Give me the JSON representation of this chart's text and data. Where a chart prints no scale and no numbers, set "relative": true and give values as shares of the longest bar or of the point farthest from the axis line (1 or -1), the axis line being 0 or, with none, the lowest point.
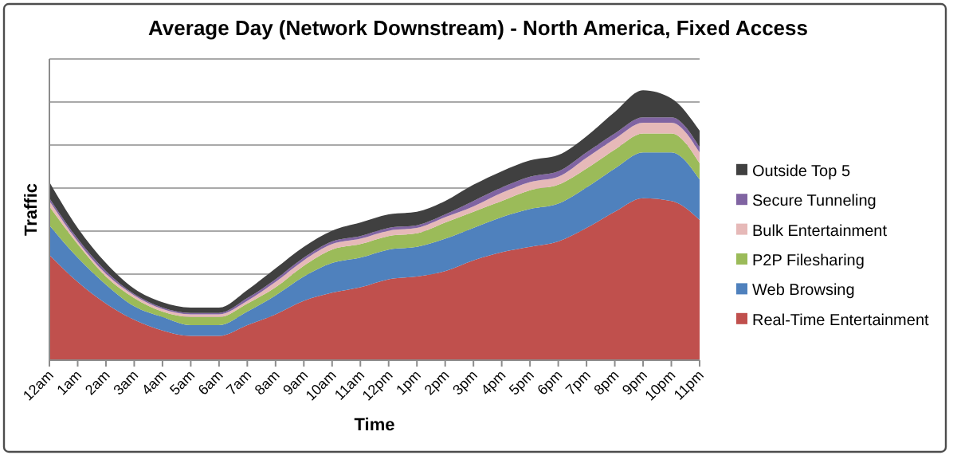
{
  "chart_data": {
    "type": "area",
    "title": "Average Day (Network Downstream) - North America, Fixed Access",
    "xlabel": "Time",
    "ylabel": "Traffic",
    "relative": true,
    "stacked": true,
    "grid": "y",
    "legend": "right",
    "categories": [
      "12am",
      "1am",
      "2am",
      "3am",
      "4am",
      "5am",
      "6am",
      "7am",
      "8am",
      "9am",
      "10am",
      "11am",
      "12pm",
      "1pm",
      "2pm",
      "3pm",
      "4pm",
      "5pm",
      "6pm",
      "7pm",
      "8pm",
      "9pm",
      "10pm",
      "11pm"
    ],
    "series": [
      {
        "name": "Real-Time Entertainment",
        "color": "#c0504d",
        "values": [
          0.39,
          0.29,
          0.21,
          0.15,
          0.11,
          0.09,
          0.09,
          0.13,
          0.17,
          0.22,
          0.25,
          0.27,
          0.3,
          0.31,
          0.33,
          0.37,
          0.4,
          0.42,
          0.44,
          0.49,
          0.55,
          0.6,
          0.59,
          0.52
        ]
      },
      {
        "name": "Web Browsing",
        "color": "#4f81bd",
        "values": [
          0.11,
          0.09,
          0.07,
          0.05,
          0.05,
          0.04,
          0.04,
          0.05,
          0.07,
          0.09,
          0.11,
          0.11,
          0.11,
          0.11,
          0.12,
          0.12,
          0.13,
          0.14,
          0.14,
          0.15,
          0.16,
          0.17,
          0.18,
          0.15
        ]
      },
      {
        "name": "P2P Filesharing",
        "color": "#9bbb59",
        "values": [
          0.07,
          0.05,
          0.03,
          0.03,
          0.02,
          0.03,
          0.03,
          0.03,
          0.03,
          0.04,
          0.05,
          0.05,
          0.05,
          0.05,
          0.06,
          0.06,
          0.06,
          0.07,
          0.07,
          0.07,
          0.07,
          0.07,
          0.07,
          0.06
        ]
      },
      {
        "name": "Bulk Entertainment",
        "color": "#e6b9b8",
        "values": [
          0.02,
          0.01,
          0.01,
          0.01,
          0.01,
          0.01,
          0.01,
          0.01,
          0.02,
          0.02,
          0.02,
          0.02,
          0.02,
          0.02,
          0.02,
          0.02,
          0.03,
          0.03,
          0.03,
          0.04,
          0.04,
          0.04,
          0.04,
          0.04
        ]
      },
      {
        "name": "Secure Tunneling",
        "color": "#8064a2",
        "values": [
          0.01,
          0.01,
          0.01,
          0.005,
          0.005,
          0.005,
          0.005,
          0.01,
          0.01,
          0.01,
          0.01,
          0.01,
          0.01,
          0.01,
          0.01,
          0.02,
          0.02,
          0.02,
          0.02,
          0.02,
          0.02,
          0.02,
          0.02,
          0.02
        ]
      },
      {
        "name": "Outside Top 5",
        "color": "#404040",
        "values": [
          0.06,
          0.04,
          0.03,
          0.02,
          0.02,
          0.02,
          0.02,
          0.03,
          0.04,
          0.04,
          0.04,
          0.05,
          0.05,
          0.05,
          0.05,
          0.06,
          0.06,
          0.06,
          0.06,
          0.06,
          0.08,
          0.1,
          0.07,
          0.06
        ]
      }
    ]
  }
}
